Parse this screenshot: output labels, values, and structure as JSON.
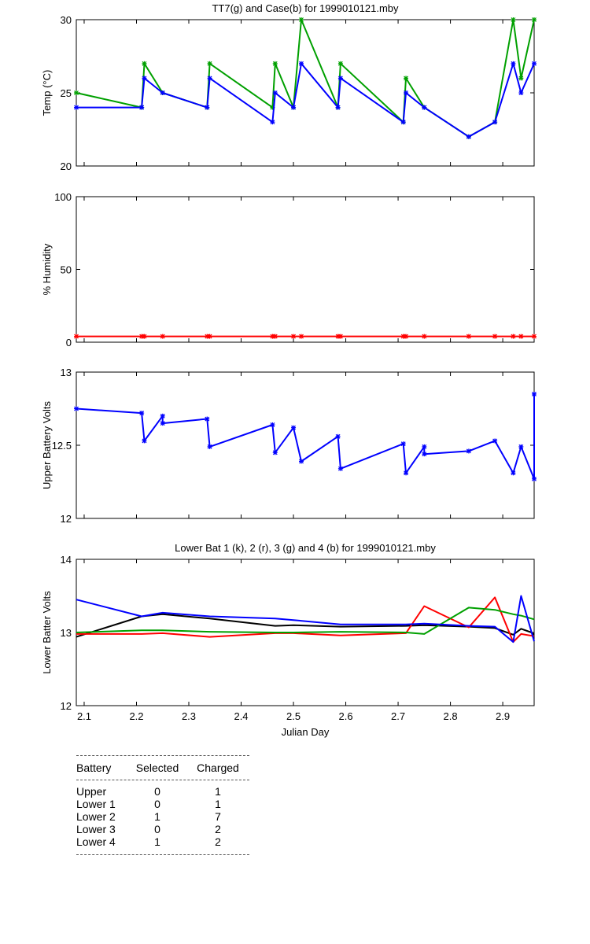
{
  "chart_data": [
    {
      "type": "line",
      "title": "TT7(g) and Case(b) for 1999010121.mby",
      "ylabel": "Temp  (°C)",
      "xlabel": "",
      "xlim": [
        2.085,
        2.96
      ],
      "ylim": [
        20,
        30
      ],
      "yticks": [
        "20",
        "25",
        "30"
      ],
      "xticks": [],
      "grid": false,
      "series": [
        {
          "color": "#00a000",
          "markers": true,
          "x": [
            2.085,
            2.21,
            2.215,
            2.25,
            2.335,
            2.34,
            2.46,
            2.465,
            2.5,
            2.515,
            2.585,
            2.59,
            2.71,
            2.715,
            2.75,
            2.835,
            2.885,
            2.92,
            2.935,
            2.96
          ],
          "y": [
            25,
            24,
            27,
            25,
            24,
            27,
            24,
            27,
            24,
            30,
            24,
            27,
            23,
            26,
            24,
            22,
            23,
            30,
            26,
            30
          ]
        },
        {
          "color": "#0000ff",
          "markers": true,
          "x": [
            2.085,
            2.21,
            2.215,
            2.25,
            2.335,
            2.34,
            2.46,
            2.465,
            2.5,
            2.515,
            2.585,
            2.59,
            2.71,
            2.715,
            2.75,
            2.835,
            2.885,
            2.92,
            2.935,
            2.96
          ],
          "y": [
            24,
            24,
            26,
            25,
            24,
            26,
            23,
            25,
            24,
            27,
            24,
            26,
            23,
            25,
            24,
            22,
            23,
            27,
            25,
            27
          ]
        }
      ]
    },
    {
      "type": "line",
      "title": "",
      "ylabel": "% Humidity",
      "xlabel": "",
      "xlim": [
        2.085,
        2.96
      ],
      "ylim": [
        0,
        100
      ],
      "yticks": [
        "0",
        "50",
        "100"
      ],
      "xticks": [],
      "grid": false,
      "series": [
        {
          "color": "#ff0000",
          "markers": true,
          "x": [
            2.085,
            2.21,
            2.215,
            2.25,
            2.335,
            2.34,
            2.46,
            2.465,
            2.5,
            2.515,
            2.585,
            2.59,
            2.71,
            2.715,
            2.75,
            2.835,
            2.885,
            2.92,
            2.935,
            2.96
          ],
          "y": [
            4,
            4,
            4,
            4,
            4,
            4,
            4,
            4,
            4,
            4,
            4,
            4,
            4,
            4,
            4,
            4,
            4,
            4,
            4,
            4
          ]
        }
      ]
    },
    {
      "type": "line",
      "title": "",
      "ylabel": "Upper Battery Volts",
      "xlabel": "",
      "xlim": [
        2.085,
        2.96
      ],
      "ylim": [
        12,
        13
      ],
      "yticks": [
        "12",
        "12.5",
        "13"
      ],
      "xticks": [],
      "grid": false,
      "series": [
        {
          "color": "#0000ff",
          "markers": true,
          "x": [
            2.085,
            2.21,
            2.215,
            2.25,
            2.25,
            2.335,
            2.34,
            2.46,
            2.465,
            2.5,
            2.515,
            2.585,
            2.59,
            2.71,
            2.715,
            2.75,
            2.75,
            2.835,
            2.885,
            2.92,
            2.935,
            2.96,
            2.96
          ],
          "y": [
            12.75,
            12.72,
            12.53,
            12.7,
            12.65,
            12.68,
            12.49,
            12.64,
            12.45,
            12.62,
            12.39,
            12.56,
            12.34,
            12.51,
            12.31,
            12.49,
            12.44,
            12.46,
            12.53,
            12.31,
            12.49,
            12.27,
            12.85
          ]
        }
      ]
    },
    {
      "type": "line",
      "title": "Lower Bat 1 (k), 2 (r), 3 (g) and 4 (b) for 1999010121.mby",
      "ylabel": "Lower Batter Volts",
      "xlabel": "Julian Day",
      "xlim": [
        2.085,
        2.96
      ],
      "ylim": [
        12,
        14
      ],
      "yticks": [
        "12",
        "13",
        "14"
      ],
      "xticks": [
        "2.1",
        "2.2",
        "2.3",
        "2.4",
        "2.5",
        "2.6",
        "2.7",
        "2.8",
        "2.9"
      ],
      "grid": false,
      "series": [
        {
          "color": "#000000",
          "markers": false,
          "x": [
            2.085,
            2.21,
            2.25,
            2.34,
            2.465,
            2.5,
            2.59,
            2.715,
            2.75,
            2.835,
            2.885,
            2.92,
            2.935,
            2.955,
            2.96
          ],
          "y": [
            12.94,
            13.22,
            13.25,
            13.19,
            13.09,
            13.1,
            13.08,
            13.09,
            13.1,
            13.08,
            13.06,
            12.97,
            13.05,
            13.0,
            12.97
          ]
        },
        {
          "color": "#ff0000",
          "markers": false,
          "x": [
            2.085,
            2.21,
            2.25,
            2.34,
            2.465,
            2.5,
            2.59,
            2.715,
            2.75,
            2.835,
            2.885,
            2.92,
            2.935,
            2.96
          ],
          "y": [
            12.98,
            12.98,
            12.99,
            12.94,
            12.99,
            12.99,
            12.96,
            12.99,
            13.36,
            13.07,
            13.48,
            12.87,
            12.98,
            12.95
          ]
        },
        {
          "color": "#00a000",
          "markers": false,
          "x": [
            2.085,
            2.21,
            2.25,
            2.34,
            2.465,
            2.5,
            2.59,
            2.715,
            2.75,
            2.835,
            2.885,
            2.92,
            2.935,
            2.96
          ],
          "y": [
            13.0,
            13.03,
            13.03,
            13.01,
            13.0,
            13.0,
            13.01,
            13.0,
            12.98,
            13.34,
            13.31,
            13.25,
            13.23,
            13.18
          ]
        },
        {
          "color": "#0000ff",
          "markers": false,
          "x": [
            2.085,
            2.21,
            2.25,
            2.34,
            2.465,
            2.5,
            2.59,
            2.715,
            2.75,
            2.835,
            2.885,
            2.92,
            2.935,
            2.96
          ],
          "y": [
            13.45,
            13.22,
            13.27,
            13.22,
            13.19,
            13.17,
            13.11,
            13.11,
            13.12,
            13.09,
            13.08,
            12.87,
            13.5,
            12.88
          ]
        }
      ]
    }
  ],
  "battery_table": {
    "headers": [
      "Battery",
      "Selected",
      "Charged"
    ],
    "rows": [
      [
        "Upper",
        "0",
        "1"
      ],
      [
        "Lower 1",
        "0",
        "1"
      ],
      [
        "Lower 2",
        "1",
        "7"
      ],
      [
        "Lower 3",
        "0",
        "2"
      ],
      [
        "Lower 4",
        "1",
        "2"
      ]
    ]
  }
}
